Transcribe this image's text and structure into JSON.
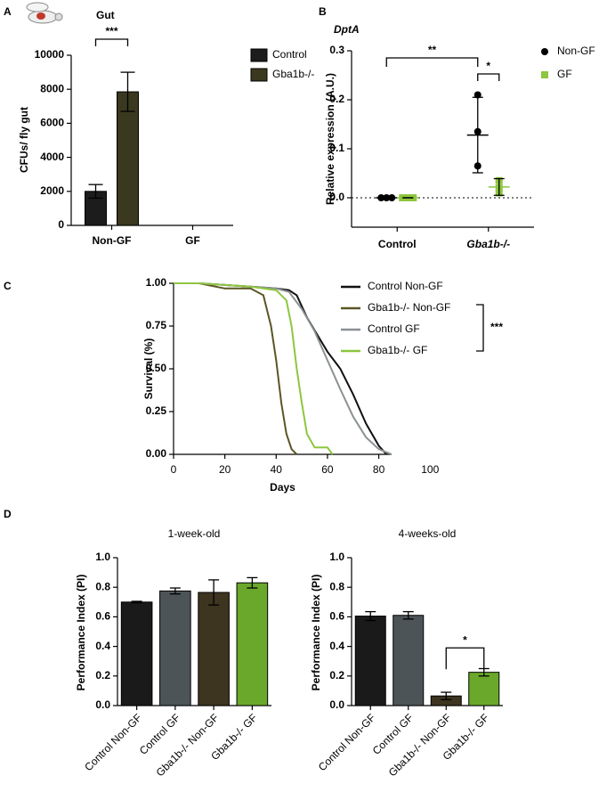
{
  "chart_data": [
    {
      "type": "bar",
      "panel": "A",
      "title": "Gut",
      "y_label": "CFUs/ fly gut",
      "categories": [
        "Non-GF",
        "GF"
      ],
      "series": [
        {
          "name": "Control",
          "color": "#1c1c1c",
          "values": [
            2000,
            null
          ],
          "errors": [
            400,
            null
          ]
        },
        {
          "name": "Gba1b-/-",
          "color": "#3b3820",
          "values": [
            7850,
            null
          ],
          "errors": [
            1150,
            null
          ]
        }
      ],
      "ylim": [
        0,
        10000
      ],
      "yticks": [
        0,
        2000,
        4000,
        6000,
        8000,
        10000
      ],
      "annotations": [
        "***"
      ]
    },
    {
      "type": "dot",
      "panel": "B",
      "title": "DptA",
      "y_label": "Relative expression  (A.U.)",
      "categories": [
        "Control",
        "Gba1b-/-"
      ],
      "series": [
        {
          "name": "Non-GF",
          "color": "#000000",
          "marker": "circle",
          "values": [
            [
              0,
              0,
              0
            ],
            [
              0.21,
              0.135,
              0.065
            ]
          ],
          "means": [
            0,
            0.128
          ],
          "sd": [
            0,
            0.077
          ]
        },
        {
          "name": "GF",
          "color": "#8dc63f",
          "marker": "square",
          "values": [
            [
              0,
              0,
              0
            ],
            [
              0.035,
              0.02,
              0.01
            ]
          ],
          "means": [
            0,
            0.022
          ],
          "sd": [
            0,
            0.017
          ]
        }
      ],
      "ylim": [
        -0.06,
        0.3
      ],
      "yticks": [
        {
          "value": 0,
          "label": "0.0"
        },
        {
          "value": 0.1,
          "label": "0.1"
        },
        {
          "value": 0.2,
          "label": "0.2"
        },
        {
          "value": 0.3,
          "label": "0.3"
        }
      ],
      "hline": 0,
      "annotations": [
        "**",
        "*"
      ]
    },
    {
      "type": "line",
      "panel": "C",
      "x_label": "Days",
      "y_label": "Survival (%)",
      "series": [
        {
          "name": "Control Non-GF",
          "color": "#111111",
          "x": [
            0,
            10,
            20,
            30,
            40,
            45,
            48,
            52,
            56,
            60,
            65,
            70,
            75,
            80,
            83
          ],
          "values": [
            1,
            1,
            0.99,
            0.98,
            0.97,
            0.96,
            0.93,
            0.8,
            0.7,
            0.6,
            0.5,
            0.35,
            0.18,
            0.05,
            0
          ]
        },
        {
          "name": "Gba1b-/- Non-GF",
          "color": "#5a5525",
          "x": [
            0,
            10,
            20,
            30,
            35,
            38,
            40,
            42,
            44,
            46,
            48
          ],
          "values": [
            1,
            1,
            0.97,
            0.97,
            0.93,
            0.75,
            0.55,
            0.3,
            0.12,
            0.03,
            0
          ]
        },
        {
          "name": "Control GF",
          "color": "#8a9094",
          "x": [
            0,
            10,
            20,
            30,
            40,
            45,
            50,
            55,
            60,
            65,
            70,
            75,
            80,
            85
          ],
          "values": [
            1,
            1,
            0.99,
            0.98,
            0.97,
            0.95,
            0.85,
            0.72,
            0.55,
            0.38,
            0.22,
            0.1,
            0.03,
            0
          ]
        },
        {
          "name": "Gba1b-/- GF",
          "color": "#8dc63f",
          "x": [
            0,
            10,
            20,
            30,
            40,
            44,
            46,
            48,
            50,
            52,
            55,
            60,
            62
          ],
          "values": [
            1,
            1,
            0.99,
            0.98,
            0.96,
            0.9,
            0.75,
            0.5,
            0.3,
            0.12,
            0.04,
            0.04,
            0
          ]
        }
      ],
      "xlim": [
        0,
        85
      ],
      "xticks": [
        0,
        20,
        40,
        60,
        80,
        100
      ],
      "ylim": [
        0,
        1
      ],
      "yticks": [
        {
          "value": 0,
          "label": "0.00"
        },
        {
          "value": 0.25,
          "label": "0.25"
        },
        {
          "value": 0.5,
          "label": "0.50"
        },
        {
          "value": 0.75,
          "label": "0.75"
        },
        {
          "value": 1,
          "label": "1.00"
        }
      ],
      "annotations": [
        "***"
      ]
    },
    {
      "type": "bar",
      "panel": "D",
      "title": "1-week-old",
      "y_label": "Performance Index (PI)",
      "categories": [
        "Control Non-GF",
        "Control GF",
        "Gba1b-/- Non-GF",
        "Gba1b-/- GF"
      ],
      "values": [
        0.7,
        0.775,
        0.765,
        0.83
      ],
      "errors": [
        0.005,
        0.02,
        0.085,
        0.035
      ],
      "colors": [
        "#1a1a1a",
        "#4d5458",
        "#3d3520",
        "#6aa82b"
      ],
      "ylim": [
        0,
        1
      ],
      "yticks": [
        {
          "value": 0,
          "label": "0.0"
        },
        0.2,
        0.4,
        0.6,
        0.8,
        {
          "value": 1,
          "label": "1.0"
        }
      ]
    },
    {
      "type": "bar",
      "title": "4-weeks-old",
      "y_label": "Performance Index (PI)",
      "categories": [
        "Control Non-GF",
        "Control GF",
        "Gba1b-/- Non-GF",
        "Gba1b-/- GF"
      ],
      "values": [
        0.605,
        0.61,
        0.065,
        0.225
      ],
      "errors": [
        0.03,
        0.025,
        0.025,
        0.025
      ],
      "colors": [
        "#1a1a1a",
        "#4d5458",
        "#3d3520",
        "#6aa82b"
      ],
      "ylim": [
        0,
        1
      ],
      "yticks": [
        {
          "value": 0,
          "label": "0.0"
        },
        0.2,
        0.4,
        0.6,
        0.8,
        {
          "value": 1,
          "label": "1.0"
        }
      ],
      "annotations": [
        "*"
      ]
    }
  ]
}
